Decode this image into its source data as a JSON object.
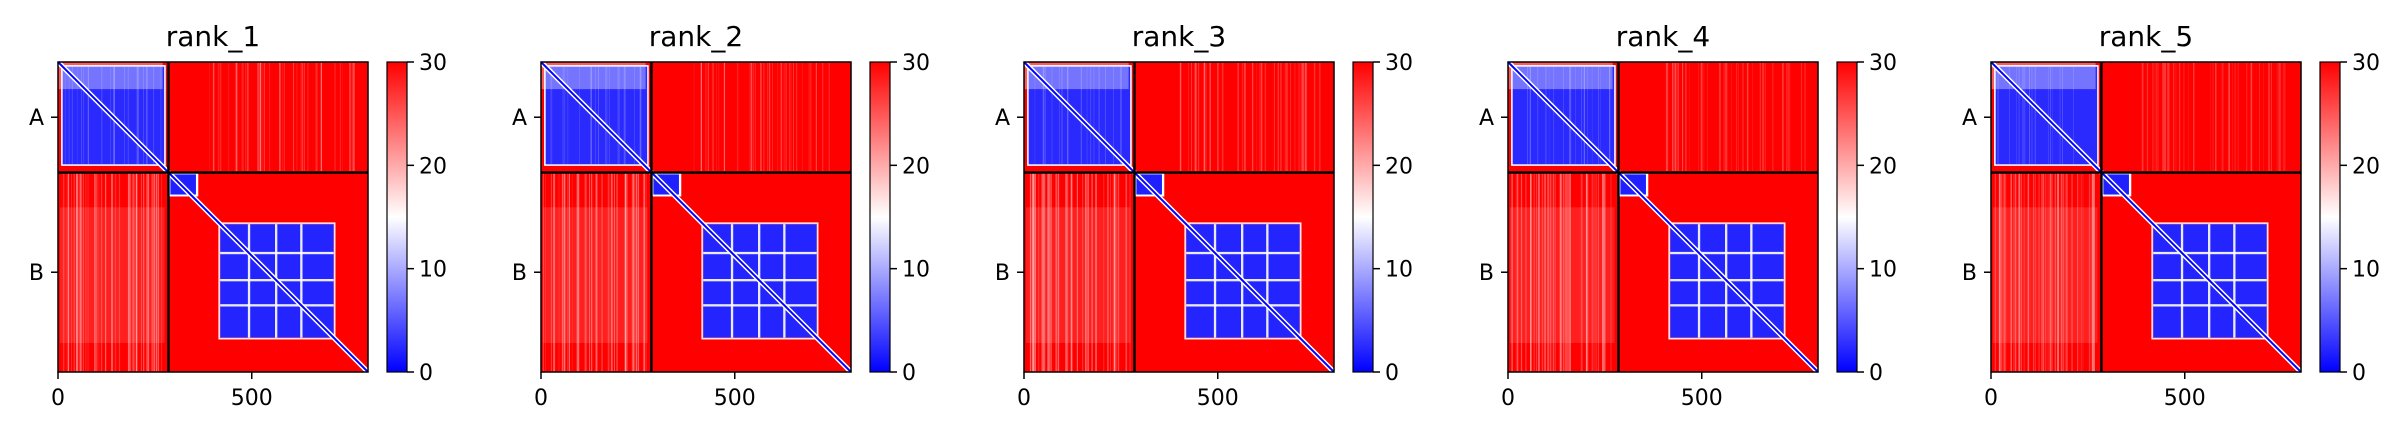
{
  "chart_data": [
    {
      "type": "heatmap",
      "title": "rank_1",
      "x_range": [
        0,
        800
      ],
      "x_ticks": [
        0,
        500
      ],
      "y_categories": [
        "A",
        "B"
      ],
      "chain_boundary": 285,
      "colorbar": {
        "range": [
          0,
          30
        ],
        "ticks": [
          0,
          10,
          20,
          30
        ],
        "colors": [
          "#0000ff",
          "#ffffff",
          "#ff0000"
        ]
      }
    },
    {
      "type": "heatmap",
      "title": "rank_2",
      "x_range": [
        0,
        800
      ],
      "x_ticks": [
        0,
        500
      ],
      "y_categories": [
        "A",
        "B"
      ],
      "chain_boundary": 285,
      "colorbar": {
        "range": [
          0,
          30
        ],
        "ticks": [
          0,
          10,
          20,
          30
        ],
        "colors": [
          "#0000ff",
          "#ffffff",
          "#ff0000"
        ]
      }
    },
    {
      "type": "heatmap",
      "title": "rank_3",
      "x_range": [
        0,
        800
      ],
      "x_ticks": [
        0,
        500
      ],
      "y_categories": [
        "A",
        "B"
      ],
      "chain_boundary": 285,
      "colorbar": {
        "range": [
          0,
          30
        ],
        "ticks": [
          0,
          10,
          20,
          30
        ],
        "colors": [
          "#0000ff",
          "#ffffff",
          "#ff0000"
        ]
      }
    },
    {
      "type": "heatmap",
      "title": "rank_4",
      "x_range": [
        0,
        800
      ],
      "x_ticks": [
        0,
        500
      ],
      "y_categories": [
        "A",
        "B"
      ],
      "chain_boundary": 285,
      "colorbar": {
        "range": [
          0,
          30
        ],
        "ticks": [
          0,
          10,
          20,
          30
        ],
        "colors": [
          "#0000ff",
          "#ffffff",
          "#ff0000"
        ]
      }
    },
    {
      "type": "heatmap",
      "title": "rank_5",
      "x_range": [
        0,
        800
      ],
      "x_ticks": [
        0,
        500
      ],
      "y_categories": [
        "A",
        "B"
      ],
      "chain_boundary": 285,
      "colorbar": {
        "range": [
          0,
          30
        ],
        "ticks": [
          0,
          10,
          20,
          30
        ],
        "colors": [
          "#0000ff",
          "#ffffff",
          "#ff0000"
        ]
      }
    }
  ]
}
